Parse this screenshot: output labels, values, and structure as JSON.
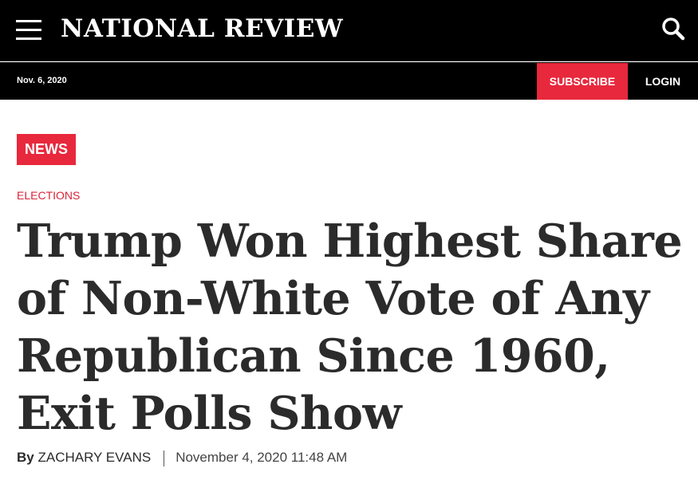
{
  "header": {
    "logo_text": "NATIONAL REVIEW",
    "menu_icon": "hamburger-menu-icon",
    "search_icon": "search-icon"
  },
  "subbar": {
    "date": "Nov. 6, 2020",
    "subscribe_label": "SUBSCRIBE",
    "login_label": "LOGIN"
  },
  "article": {
    "badge": "NEWS",
    "category": "ELECTIONS",
    "headline": "Trump Won Highest Share of Non-White Vote of Any Republican Since 1960, Exit Polls Show",
    "byline_prefix": "By",
    "author": "ZACHARY EVANS",
    "published": "November 4, 2020 11:48 AM"
  },
  "colors": {
    "header_bg": "#000000",
    "accent_red": "#e8283c",
    "headline_text": "#2b2b2b"
  }
}
